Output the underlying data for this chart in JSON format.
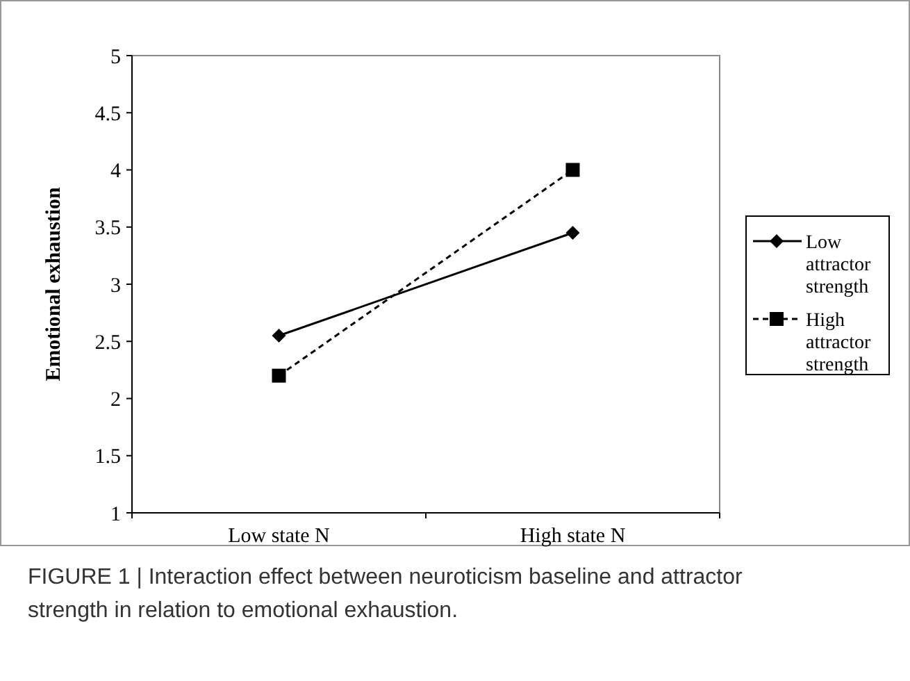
{
  "chart_data": {
    "type": "line",
    "ylabel": "Emotional exhaustion",
    "categories": [
      "Low state N",
      "High state N"
    ],
    "series": [
      {
        "name": "Low attractor strength",
        "color": "#000000",
        "values": [
          2.55,
          3.45
        ],
        "marker": "diamond",
        "line_style": "solid"
      },
      {
        "name": "High attractor strength",
        "color": "#000000",
        "values": [
          2.2,
          4.0
        ],
        "marker": "square",
        "line_style": "dashed"
      }
    ],
    "ylim": [
      1,
      5
    ],
    "yticks": [
      1,
      1.5,
      2,
      2.5,
      3,
      3.5,
      4,
      4.5,
      5
    ],
    "legend": "right",
    "annotations": [
      "FIGURE 1 | Interaction effect between neuroticism baseline and attractor strength in relation to emotional exhaustion."
    ]
  }
}
